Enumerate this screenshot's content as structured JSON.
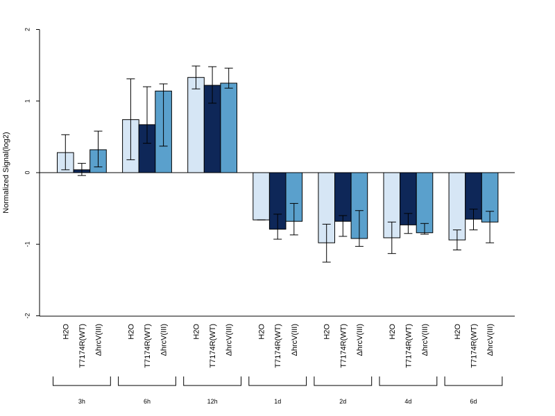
{
  "chart_data": {
    "type": "bar",
    "ylabel": "Normalized Signal(log2)",
    "ylim": [
      -2,
      2
    ],
    "yticks": [
      -2,
      -1,
      0,
      1,
      2
    ],
    "grid": false,
    "legend": "none",
    "groups": [
      "3h",
      "6h",
      "12h",
      "1d",
      "2d",
      "4d",
      "6d"
    ],
    "series": [
      {
        "name": "H2O",
        "color": "#d6e6f5",
        "values": [
          0.28,
          0.74,
          1.33,
          -0.66,
          -0.98,
          -0.91,
          -0.94
        ],
        "error_low": [
          0.04,
          0.18,
          1.17,
          -0.66,
          -1.25,
          -1.13,
          -1.08
        ],
        "error_high": [
          0.53,
          1.31,
          1.49,
          -0.66,
          -0.72,
          -0.69,
          -0.8
        ]
      },
      {
        "name": "T7174R(WT)",
        "color": "#0e2758",
        "values": [
          0.04,
          0.67,
          1.22,
          -0.79,
          -0.68,
          -0.73,
          -0.65
        ],
        "error_low": [
          -0.04,
          0.41,
          0.97,
          -0.93,
          -0.89,
          -0.85,
          -0.8
        ],
        "error_high": [
          0.13,
          1.2,
          1.48,
          -0.58,
          -0.6,
          -0.57,
          -0.51
        ]
      },
      {
        "name": "ΔhrcV(III)",
        "color": "#5aa0cc",
        "values": [
          0.32,
          1.14,
          1.25,
          -0.68,
          -0.92,
          -0.84,
          -0.69
        ],
        "error_low": [
          0.08,
          0.37,
          1.18,
          -0.87,
          -1.03,
          -0.86,
          -0.98
        ],
        "error_high": [
          0.58,
          1.24,
          1.46,
          -0.43,
          -0.53,
          -0.71,
          -0.54
        ]
      }
    ]
  }
}
